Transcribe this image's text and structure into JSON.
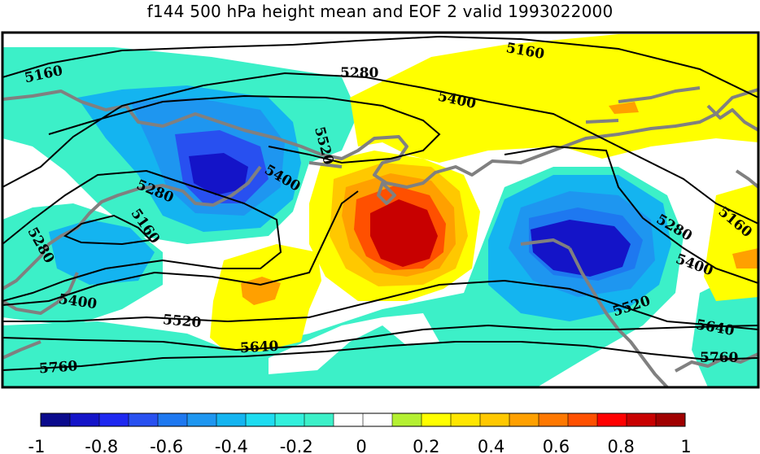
{
  "title": "f144 500 hPa height mean and EOF 2 valid 1993022000",
  "contour_labels": [
    "5160",
    "5280",
    "5400",
    "5520",
    "5640",
    "5760"
  ],
  "colorbar": {
    "colors": [
      "#0a0a8c",
      "#1414c8",
      "#1e28f0",
      "#2850f0",
      "#1e78f0",
      "#1e96f0",
      "#14b4f0",
      "#1edcf0",
      "#32f0dc",
      "#3cf0c8",
      "#ffffff",
      "#ffffff",
      "#b4f032",
      "#ffff00",
      "#ffe600",
      "#ffc800",
      "#ffa000",
      "#ff7800",
      "#ff5000",
      "#ff0000",
      "#c80000",
      "#a00000"
    ],
    "tick_labels": [
      "-1",
      "-0.8",
      "-0.6",
      "-0.4",
      "-0.2",
      "0",
      "0.2",
      "0.4",
      "0.6",
      "0.8",
      "1"
    ]
  }
}
